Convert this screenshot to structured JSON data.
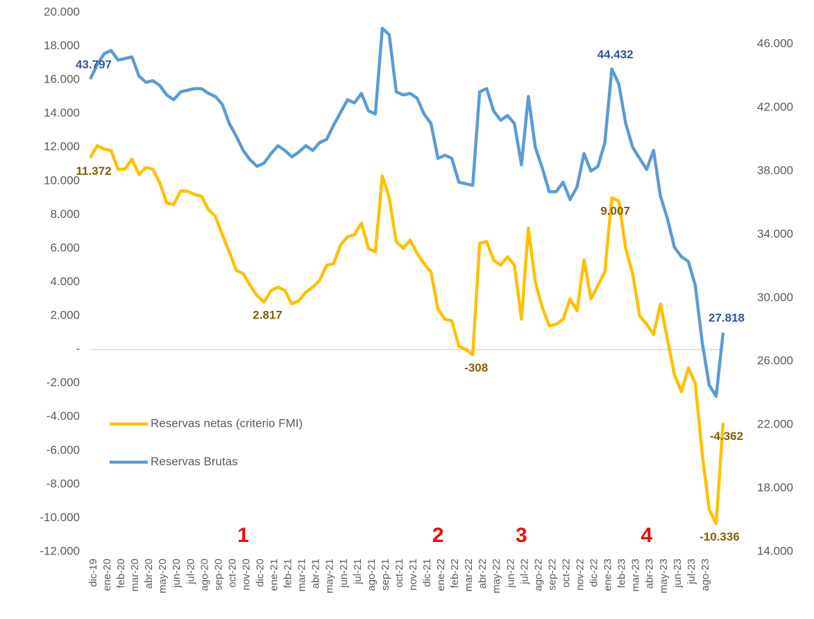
{
  "chart_data": {
    "type": "line",
    "categories": [
      "dic-19",
      null,
      "ene-20",
      null,
      "feb-20",
      null,
      "mar-20",
      null,
      "abr-20",
      null,
      "may-20",
      null,
      "jun-20",
      null,
      "jul-20",
      null,
      "ago-20",
      null,
      "sep-20",
      null,
      "oct-20",
      null,
      "nov-20",
      null,
      "dic-20",
      null,
      "ene-21",
      null,
      "feb-21",
      null,
      "mar-21",
      null,
      "abr-21",
      null,
      "may-21",
      null,
      "jun-21",
      null,
      "jul-21",
      null,
      "ago-21",
      null,
      "sep-21",
      null,
      "oct-21",
      null,
      "nov-21",
      null,
      "dic-21",
      null,
      "ene-22",
      null,
      "feb-22",
      null,
      "mar-22",
      null,
      "abr-22",
      null,
      "may-22",
      null,
      "jun-22",
      null,
      "jul-22",
      null,
      "ago-22",
      null,
      "sep-22",
      null,
      "oct-22",
      null,
      "nov-22",
      null,
      "dic-22",
      null,
      "ene-23",
      null,
      "feb-23",
      null,
      "mar-23",
      null,
      "abr-23",
      null,
      "may-23",
      null,
      "jun-23",
      null,
      "jul-23",
      null,
      "ago-23",
      null,
      null,
      null
    ],
    "series": [
      {
        "name": "Reservas netas (criterio FMI)",
        "color": "#ffc000",
        "label_color": "#7f6000",
        "axis": "y",
        "values": [
          11372,
          12100,
          11900,
          11800,
          10700,
          10700,
          11300,
          10400,
          10800,
          10700,
          9900,
          8700,
          8600,
          9400,
          9400,
          9200,
          9100,
          8300,
          7900,
          6800,
          5800,
          4700,
          4500,
          3800,
          3200,
          2817,
          3500,
          3700,
          3500,
          2700,
          2900,
          3400,
          3700,
          4100,
          5000,
          5100,
          6200,
          6700,
          6800,
          7500,
          6000,
          5800,
          10300,
          9000,
          6400,
          6000,
          6500,
          5700,
          5100,
          4600,
          2400,
          1800,
          1700,
          200,
          0,
          -308,
          6300,
          6400,
          5300,
          5000,
          5500,
          5000,
          1800,
          7200,
          4000,
          2500,
          1400,
          1500,
          1800,
          3000,
          2300,
          5300,
          3000,
          3800,
          4600,
          9007,
          8800,
          6000,
          4500,
          2000,
          1500,
          900,
          2700,
          600,
          -1500,
          -2500,
          -1100,
          -2000,
          -6200,
          -9500,
          -10336,
          -4362
        ],
        "value_labels": {
          "0": "11.372",
          "25": "2.817",
          "55": "-308",
          "75": "9.007",
          "90": "-10.336",
          "91": "-4.362"
        }
      },
      {
        "name": "Reservas Brutas",
        "color": "#5b9bd5",
        "label_color": "#2f5597",
        "axis": "y2",
        "values": [
          43797,
          44700,
          45400,
          45600,
          45000,
          45100,
          45200,
          44000,
          43600,
          43700,
          43400,
          42800,
          42500,
          43000,
          43100,
          43200,
          43200,
          42900,
          42700,
          42200,
          41000,
          40200,
          39300,
          38700,
          38300,
          38500,
          39100,
          39600,
          39300,
          38900,
          39200,
          39600,
          39300,
          39800,
          40000,
          40900,
          41700,
          42500,
          42300,
          42900,
          41800,
          41600,
          47000,
          46600,
          43000,
          42800,
          42900,
          42600,
          41600,
          41000,
          38800,
          39000,
          38800,
          37300,
          37200,
          37100,
          43000,
          43200,
          41800,
          41200,
          41500,
          41000,
          38400,
          42700,
          39500,
          38200,
          36700,
          36700,
          37300,
          36200,
          37000,
          39100,
          38000,
          38300,
          39800,
          44432,
          43500,
          41000,
          39500,
          38800,
          38100,
          39300,
          36400,
          35000,
          33200,
          32600,
          32300,
          30800,
          27200,
          24500,
          23800,
          27818
        ],
        "value_labels": {
          "0": "43.797",
          "75": "44.432",
          "91": "27.818"
        }
      }
    ],
    "ylim": [
      -12000,
      20000
    ],
    "yticks": [
      {
        "value": -12000,
        "label": "-12.000"
      },
      {
        "value": -10000,
        "label": "-10.000"
      },
      {
        "value": -8000,
        "label": "-8.000"
      },
      {
        "value": -6000,
        "label": "-6.000"
      },
      {
        "value": -4000,
        "label": "-4.000"
      },
      {
        "value": -2000,
        "label": "-2.000"
      },
      {
        "value": 0,
        "label": "-"
      },
      {
        "value": 2000,
        "label": "2.000"
      },
      {
        "value": 4000,
        "label": "4.000"
      },
      {
        "value": 6000,
        "label": "6.000"
      },
      {
        "value": 8000,
        "label": "8.000"
      },
      {
        "value": 10000,
        "label": "10.000"
      },
      {
        "value": 12000,
        "label": "12.000"
      },
      {
        "value": 14000,
        "label": "14.000"
      },
      {
        "value": 16000,
        "label": "16.000"
      },
      {
        "value": 18000,
        "label": "18.000"
      },
      {
        "value": 20000,
        "label": "20.000"
      }
    ],
    "y2lim": [
      14000,
      48000
    ],
    "y2ticks": [
      {
        "value": 14000,
        "label": "14.000"
      },
      {
        "value": 18000,
        "label": "18.000"
      },
      {
        "value": 22000,
        "label": "22.000"
      },
      {
        "value": 26000,
        "label": "26.000"
      },
      {
        "value": 30000,
        "label": "30.000"
      },
      {
        "value": 34000,
        "label": "34.000"
      },
      {
        "value": 38000,
        "label": "38.000"
      },
      {
        "value": 42000,
        "label": "42.000"
      },
      {
        "value": 46000,
        "label": "46.000"
      }
    ],
    "grid": false,
    "legend": "lower left",
    "annotations": [
      {
        "text": "1",
        "category": "nov-20"
      },
      {
        "text": "2",
        "category": "ene-22"
      },
      {
        "text": "3",
        "category": "jul-22"
      },
      {
        "text": "4",
        "category": "abr-23"
      }
    ]
  }
}
